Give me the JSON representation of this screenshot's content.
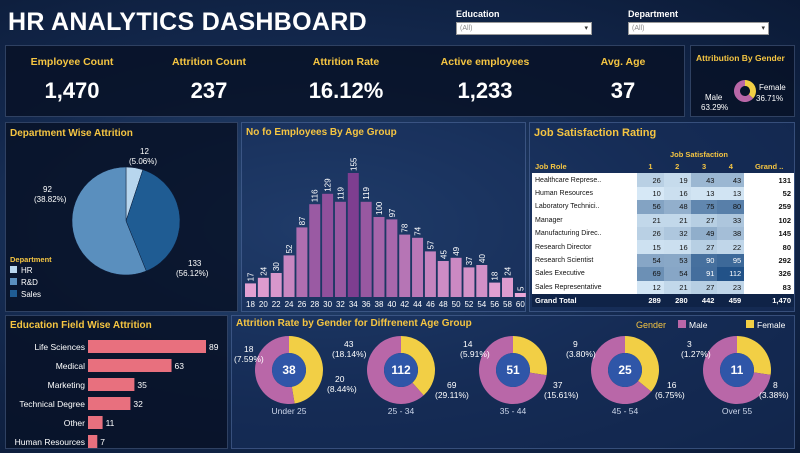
{
  "title": "HR ANALYTICS DASHBOARD",
  "filters": {
    "education": {
      "label": "Education",
      "value": "(All)"
    },
    "department": {
      "label": "Department",
      "value": "(All)"
    }
  },
  "kpis": [
    {
      "label": "Employee Count",
      "value": "1,470"
    },
    {
      "label": "Attrition Count",
      "value": "237"
    },
    {
      "label": "Attrition Rate",
      "value": "16.12%"
    },
    {
      "label": "Active employees",
      "value": "1,233"
    },
    {
      "label": "Avg. Age",
      "value": "37"
    }
  ],
  "gender_attrition": {
    "title": "Attribution By Gender",
    "male_label": "Male",
    "male_pct": "63.29%",
    "female_label": "Female",
    "female_pct": "36.71%",
    "colors": {
      "male": "#b967a8",
      "female": "#f2cf45"
    }
  },
  "dept_attrition": {
    "title": "Department Wise Attrition",
    "legend_title": "Department",
    "legend": [
      "HR",
      "R&D",
      "Sales"
    ],
    "colors": [
      "#b8d6ee",
      "#5a8fbe",
      "#1f5c93"
    ],
    "chart_data": {
      "type": "pie",
      "labels": [
        "HR",
        "Sales",
        "R&D"
      ],
      "values": [
        12,
        92,
        133
      ],
      "display": [
        {
          "count": "12",
          "pct": "(5.06%)"
        },
        {
          "count": "92",
          "pct": "(38.82%)"
        },
        {
          "count": "133",
          "pct": "(56.12%)"
        }
      ]
    }
  },
  "age_group": {
    "title": "No fo Employees By Age Group",
    "chart_data": {
      "type": "bar",
      "categories": [
        "18",
        "20",
        "22",
        "24",
        "26",
        "28",
        "30",
        "32",
        "34",
        "36",
        "38",
        "40",
        "42",
        "44",
        "46",
        "48",
        "50",
        "52",
        "54",
        "56",
        "58",
        "60"
      ],
      "values": [
        17,
        24,
        30,
        52,
        87,
        116,
        129,
        119,
        155,
        119,
        100,
        97,
        78,
        74,
        57,
        45,
        49,
        37,
        40,
        18,
        24,
        5
      ]
    }
  },
  "job_satisfaction": {
    "title": "Job Satisfaction Rating",
    "header_group": "Job Satisfaction",
    "columns": [
      "Job Role",
      "1",
      "2",
      "3",
      "4",
      "Grand .."
    ],
    "rows": [
      {
        "role": "Healthcare Represe..",
        "v": [
          26,
          19,
          43,
          43
        ],
        "total": "131"
      },
      {
        "role": "Human Resources",
        "v": [
          10,
          16,
          13,
          13
        ],
        "total": "52"
      },
      {
        "role": "Laboratory Technici..",
        "v": [
          56,
          48,
          75,
          80
        ],
        "total": "259"
      },
      {
        "role": "Manager",
        "v": [
          21,
          21,
          27,
          33
        ],
        "total": "102"
      },
      {
        "role": "Manufacturing Direc..",
        "v": [
          26,
          32,
          49,
          38
        ],
        "total": "145"
      },
      {
        "role": "Research Director",
        "v": [
          15,
          16,
          27,
          22
        ],
        "total": "80"
      },
      {
        "role": "Research Scientist",
        "v": [
          54,
          53,
          90,
          95
        ],
        "total": "292"
      },
      {
        "role": "Sales Executive",
        "v": [
          69,
          54,
          91,
          112
        ],
        "total": "326"
      },
      {
        "role": "Sales Representative",
        "v": [
          12,
          21,
          27,
          23
        ],
        "total": "83"
      }
    ],
    "grand_total": {
      "label": "Grand Total",
      "v": [
        "289",
        "280",
        "442",
        "459"
      ],
      "total": "1,470"
    }
  },
  "education_field": {
    "title": "Education Field Wise Attrition",
    "bar_color": "#e8707e",
    "chart_data": {
      "type": "bar",
      "orientation": "horizontal",
      "categories": [
        "Life Sciences",
        "Medical",
        "Marketing",
        "Technical Degree",
        "Other",
        "Human Resources"
      ],
      "values": [
        89,
        63,
        35,
        32,
        11,
        7
      ]
    }
  },
  "gender_age": {
    "title": "Attrition Rate by Gender for Diffrenent Age Group",
    "legend_title": "Gender",
    "legend": [
      "Male",
      "Female"
    ],
    "colors": {
      "male": "#b967a8",
      "female": "#f2cf45",
      "center": "#2f56a8"
    },
    "chart_data": {
      "type": "pie",
      "groups": [
        {
          "label": "Under 25",
          "total": 38,
          "female": 18,
          "female_pct": "(7.59%)",
          "male": 20,
          "male_pct": "(8.44%)",
          "extra": "43",
          "extra_pct": "(18.14%)"
        },
        {
          "label": "25 - 34",
          "total": 112,
          "female": 43,
          "male": 69,
          "male_pct_label": "69",
          "male_pct": "(29.11%)"
        },
        {
          "label": "35 - 44",
          "total": 51,
          "female": 14,
          "female_pct": "(5.91%)",
          "male": 37,
          "male_pct": "(15.61%)"
        },
        {
          "label": "45 - 54",
          "total": 25,
          "female": 9,
          "female_pct": "(3.80%)",
          "male": 16,
          "male_pct": "(6.75%)"
        },
        {
          "label": "Over 55",
          "total": 11,
          "female": 3,
          "female_pct": "(1.27%)",
          "male": 8,
          "male_pct": "(3.38%)"
        }
      ]
    }
  }
}
